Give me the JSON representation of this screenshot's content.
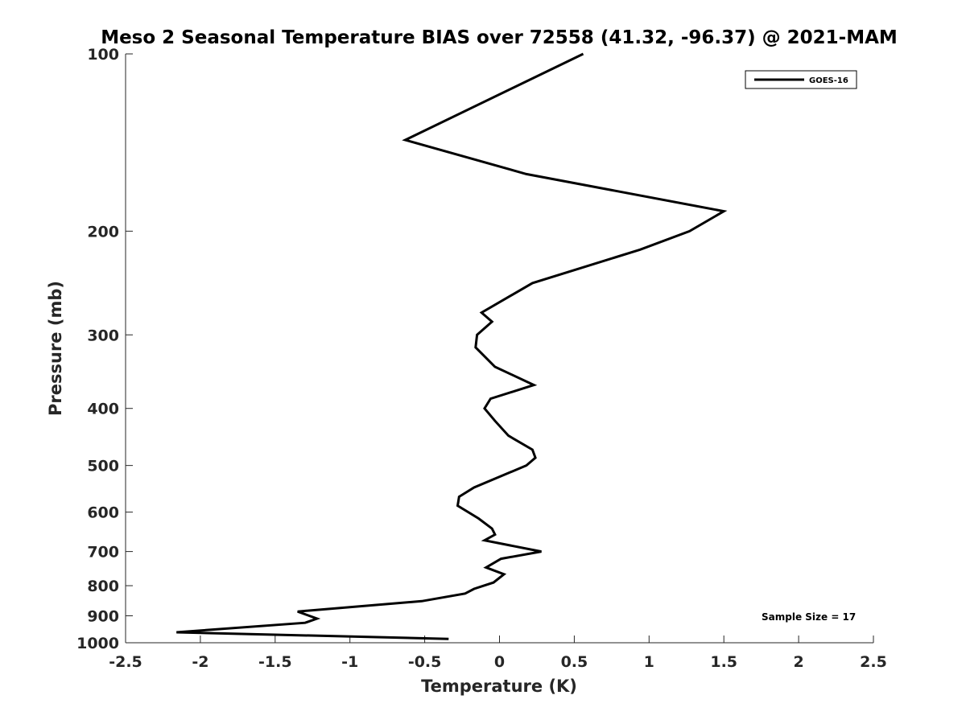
{
  "chart_data": {
    "type": "line",
    "title": "Meso 2 Seasonal Temperature BIAS over 72558 (41.32, -96.37) @ 2021-MAM",
    "xlabel": "Temperature (K)",
    "ylabel": "Pressure (mb)",
    "xlim": [
      -2.5,
      2.5
    ],
    "ylim": [
      100,
      1000
    ],
    "y_scale": "log",
    "y_reversed": true,
    "grid": false,
    "x_ticks": [
      "-2.5",
      "-2",
      "-1.5",
      "-1",
      "-0.5",
      "0",
      "0.5",
      "1",
      "1.5",
      "2",
      "2.5"
    ],
    "y_ticks": [
      "100",
      "200",
      "300",
      "400",
      "500",
      "600",
      "700",
      "800",
      "900",
      "1000"
    ],
    "legend_position": "top-right",
    "annotation": "Sample Size = 17",
    "series": [
      {
        "name": "GOES-16",
        "color": "#000000",
        "points": [
          {
            "x": 0.56,
            "y": 100
          },
          {
            "x": -0.63,
            "y": 140
          },
          {
            "x": 0.18,
            "y": 160
          },
          {
            "x": 1.5,
            "y": 185
          },
          {
            "x": 1.27,
            "y": 200
          },
          {
            "x": 0.94,
            "y": 215
          },
          {
            "x": 0.22,
            "y": 245
          },
          {
            "x": -0.12,
            "y": 275
          },
          {
            "x": -0.05,
            "y": 285
          },
          {
            "x": -0.15,
            "y": 300
          },
          {
            "x": -0.16,
            "y": 315
          },
          {
            "x": -0.03,
            "y": 340
          },
          {
            "x": 0.23,
            "y": 365
          },
          {
            "x": -0.06,
            "y": 385
          },
          {
            "x": -0.1,
            "y": 400
          },
          {
            "x": -0.03,
            "y": 420
          },
          {
            "x": 0.06,
            "y": 445
          },
          {
            "x": 0.22,
            "y": 470
          },
          {
            "x": 0.24,
            "y": 485
          },
          {
            "x": 0.18,
            "y": 500
          },
          {
            "x": -0.17,
            "y": 545
          },
          {
            "x": -0.27,
            "y": 565
          },
          {
            "x": -0.28,
            "y": 585
          },
          {
            "x": -0.14,
            "y": 615
          },
          {
            "x": -0.05,
            "y": 640
          },
          {
            "x": -0.03,
            "y": 655
          },
          {
            "x": -0.1,
            "y": 670
          },
          {
            "x": 0.28,
            "y": 700
          },
          {
            "x": 0.01,
            "y": 720
          },
          {
            "x": -0.09,
            "y": 745
          },
          {
            "x": 0.03,
            "y": 765
          },
          {
            "x": -0.04,
            "y": 790
          },
          {
            "x": -0.17,
            "y": 810
          },
          {
            "x": -0.23,
            "y": 825
          },
          {
            "x": -0.52,
            "y": 850
          },
          {
            "x": -1.35,
            "y": 885
          },
          {
            "x": -1.22,
            "y": 910
          },
          {
            "x": -1.3,
            "y": 925
          },
          {
            "x": -2.16,
            "y": 960
          },
          {
            "x": -0.34,
            "y": 985
          }
        ]
      }
    ]
  }
}
